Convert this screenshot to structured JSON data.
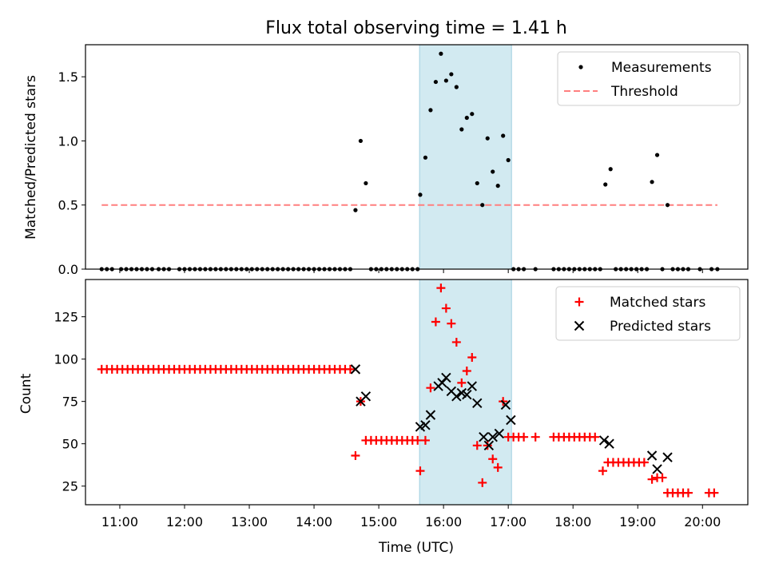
{
  "title": "Flux total observing time = 1.41 h",
  "colors": {
    "measurement": "#000000",
    "threshold": "#ff7f7f",
    "matched": "#ff0000",
    "predicted": "#000000",
    "highlight": "#add8e6"
  },
  "chart_data": [
    {
      "type": "scatter",
      "ylabel": "Matched/Predicted stars",
      "xlabel": "",
      "xlim": [
        10.47,
        20.7
      ],
      "ylim": [
        0,
        1.75
      ],
      "y_ticks": [
        0.0,
        0.5,
        1.0,
        1.5
      ],
      "y_tick_labels": [
        "0.0",
        "0.5",
        "1.0",
        "1.5"
      ],
      "shaded_span": [
        15.63,
        17.05
      ],
      "legend": {
        "position": "top-right",
        "entries": [
          "Measurements",
          "Threshold"
        ]
      },
      "threshold": {
        "name": "Threshold",
        "value": 0.5,
        "x_range": [
          10.72,
          20.23
        ]
      },
      "series": [
        {
          "name": "Measurements",
          "marker": "dot",
          "x": [
            10.72,
            10.8,
            10.88,
            11.02,
            11.1,
            11.18,
            11.26,
            11.34,
            11.42,
            11.5,
            11.6,
            11.68,
            11.76,
            11.92,
            12.0,
            12.08,
            12.16,
            12.24,
            12.32,
            12.4,
            12.48,
            12.56,
            12.64,
            12.72,
            12.8,
            12.88,
            12.96,
            13.04,
            13.12,
            13.2,
            13.28,
            13.36,
            13.44,
            13.52,
            13.6,
            13.68,
            13.76,
            13.84,
            13.92,
            14.0,
            14.08,
            14.16,
            14.24,
            14.32,
            14.4,
            14.48,
            14.56,
            14.64,
            14.72,
            14.8,
            14.88,
            14.96,
            15.04,
            15.12,
            15.2,
            15.28,
            15.36,
            15.44,
            15.52,
            15.6,
            15.64,
            15.72,
            15.8,
            15.88,
            15.96,
            16.04,
            16.12,
            16.2,
            16.28,
            16.36,
            16.44,
            16.52,
            16.6,
            16.68,
            16.76,
            16.84,
            16.92,
            17.0,
            17.08,
            17.16,
            17.24,
            17.42,
            17.7,
            17.78,
            17.86,
            17.94,
            18.02,
            18.1,
            18.18,
            18.26,
            18.34,
            18.42,
            18.5,
            18.58,
            18.66,
            18.74,
            18.82,
            18.9,
            18.98,
            19.06,
            19.14,
            19.22,
            19.3,
            19.38,
            19.46,
            19.54,
            19.62,
            19.7,
            19.78,
            19.96,
            20.14,
            20.23
          ],
          "y": [
            0,
            0,
            0,
            0,
            0,
            0,
            0,
            0,
            0,
            0,
            0,
            0,
            0,
            0,
            0,
            0,
            0,
            0,
            0,
            0,
            0,
            0,
            0,
            0,
            0,
            0,
            0,
            0,
            0,
            0,
            0,
            0,
            0,
            0,
            0,
            0,
            0,
            0,
            0,
            0,
            0,
            0,
            0,
            0,
            0,
            0,
            0,
            0.46,
            1.0,
            0.67,
            0,
            0,
            0,
            0,
            0,
            0,
            0,
            0,
            0,
            0,
            0.58,
            0.87,
            1.24,
            1.46,
            1.68,
            1.47,
            1.52,
            1.42,
            1.09,
            1.18,
            1.21,
            0.67,
            0.5,
            1.02,
            0.76,
            0.65,
            1.04,
            0.85,
            0,
            0,
            0,
            0,
            0,
            0,
            0,
            0,
            0,
            0,
            0,
            0,
            0,
            0,
            0.66,
            0.78,
            0,
            0,
            0,
            0,
            0,
            0,
            0,
            0.68,
            0.89,
            0,
            0.5,
            0,
            0,
            0,
            0,
            0,
            0,
            0
          ]
        }
      ]
    },
    {
      "type": "scatter",
      "ylabel": "Count",
      "xlabel": "Time (UTC)",
      "xlim": [
        10.47,
        20.7
      ],
      "ylim": [
        14,
        147
      ],
      "x_ticks": [
        11,
        12,
        13,
        14,
        15,
        16,
        17,
        18,
        19,
        20
      ],
      "x_tick_labels": [
        "11:00",
        "12:00",
        "13:00",
        "14:00",
        "15:00",
        "16:00",
        "17:00",
        "18:00",
        "19:00",
        "20:00"
      ],
      "y_ticks": [
        25,
        50,
        75,
        100,
        125
      ],
      "y_tick_labels": [
        "25",
        "50",
        "75",
        "100",
        "125"
      ],
      "shaded_span": [
        15.63,
        17.05
      ],
      "legend": {
        "position": "top-right",
        "entries": [
          "Matched stars",
          "Predicted stars"
        ]
      },
      "series": [
        {
          "name": "Matched stars",
          "marker": "plus",
          "x": [
            10.72,
            10.8,
            10.88,
            10.96,
            11.04,
            11.12,
            11.2,
            11.28,
            11.36,
            11.44,
            11.52,
            11.6,
            11.68,
            11.76,
            11.84,
            11.92,
            12.0,
            12.08,
            12.16,
            12.24,
            12.32,
            12.4,
            12.48,
            12.56,
            12.64,
            12.72,
            12.8,
            12.88,
            12.96,
            13.04,
            13.12,
            13.2,
            13.28,
            13.36,
            13.44,
            13.52,
            13.6,
            13.68,
            13.76,
            13.84,
            13.92,
            14.0,
            14.08,
            14.16,
            14.24,
            14.32,
            14.4,
            14.48,
            14.56,
            14.64,
            14.72,
            14.8,
            14.88,
            14.96,
            15.04,
            15.12,
            15.2,
            15.28,
            15.36,
            15.44,
            15.52,
            15.6,
            15.64,
            15.72,
            15.8,
            15.88,
            15.96,
            16.04,
            16.12,
            16.2,
            16.28,
            16.36,
            16.44,
            16.52,
            16.6,
            16.68,
            16.76,
            16.84,
            16.92,
            17.0,
            17.08,
            17.16,
            17.24,
            17.42,
            17.7,
            17.78,
            17.86,
            17.94,
            18.02,
            18.1,
            18.18,
            18.26,
            18.34,
            18.46,
            18.54,
            18.62,
            18.7,
            18.78,
            18.86,
            18.94,
            19.02,
            19.1,
            19.22,
            19.3,
            19.38,
            19.46,
            19.54,
            19.62,
            19.7,
            19.78,
            20.1,
            20.18
          ],
          "y": [
            94,
            94,
            94,
            94,
            94,
            94,
            94,
            94,
            94,
            94,
            94,
            94,
            94,
            94,
            94,
            94,
            94,
            94,
            94,
            94,
            94,
            94,
            94,
            94,
            94,
            94,
            94,
            94,
            94,
            94,
            94,
            94,
            94,
            94,
            94,
            94,
            94,
            94,
            94,
            94,
            94,
            94,
            94,
            94,
            94,
            94,
            94,
            94,
            94,
            43,
            75,
            52,
            52,
            52,
            52,
            52,
            52,
            52,
            52,
            52,
            52,
            52,
            34,
            52,
            83,
            122,
            142,
            130,
            121,
            110,
            86,
            93,
            101,
            49,
            27,
            49,
            41,
            36,
            75,
            54,
            54,
            54,
            54,
            54,
            54,
            54,
            54,
            54,
            54,
            54,
            54,
            54,
            54,
            34,
            39,
            39,
            39,
            39,
            39,
            39,
            39,
            39,
            29,
            30,
            30,
            21,
            21,
            21,
            21,
            21,
            21,
            21
          ]
        },
        {
          "name": "Predicted stars",
          "marker": "x",
          "x": [
            14.64,
            14.72,
            14.8,
            15.64,
            15.72,
            15.8,
            15.92,
            15.98,
            16.04,
            16.12,
            16.2,
            16.28,
            16.36,
            16.44,
            16.52,
            16.62,
            16.7,
            16.76,
            16.86,
            16.96,
            17.04,
            18.48,
            18.56,
            19.22,
            19.3,
            19.46
          ],
          "y": [
            94,
            75,
            78,
            60,
            61,
            67,
            84,
            86,
            89,
            81,
            78,
            80,
            79,
            84,
            74,
            54,
            49,
            54,
            56,
            73,
            64,
            52,
            50,
            43,
            35,
            42
          ]
        }
      ]
    }
  ]
}
